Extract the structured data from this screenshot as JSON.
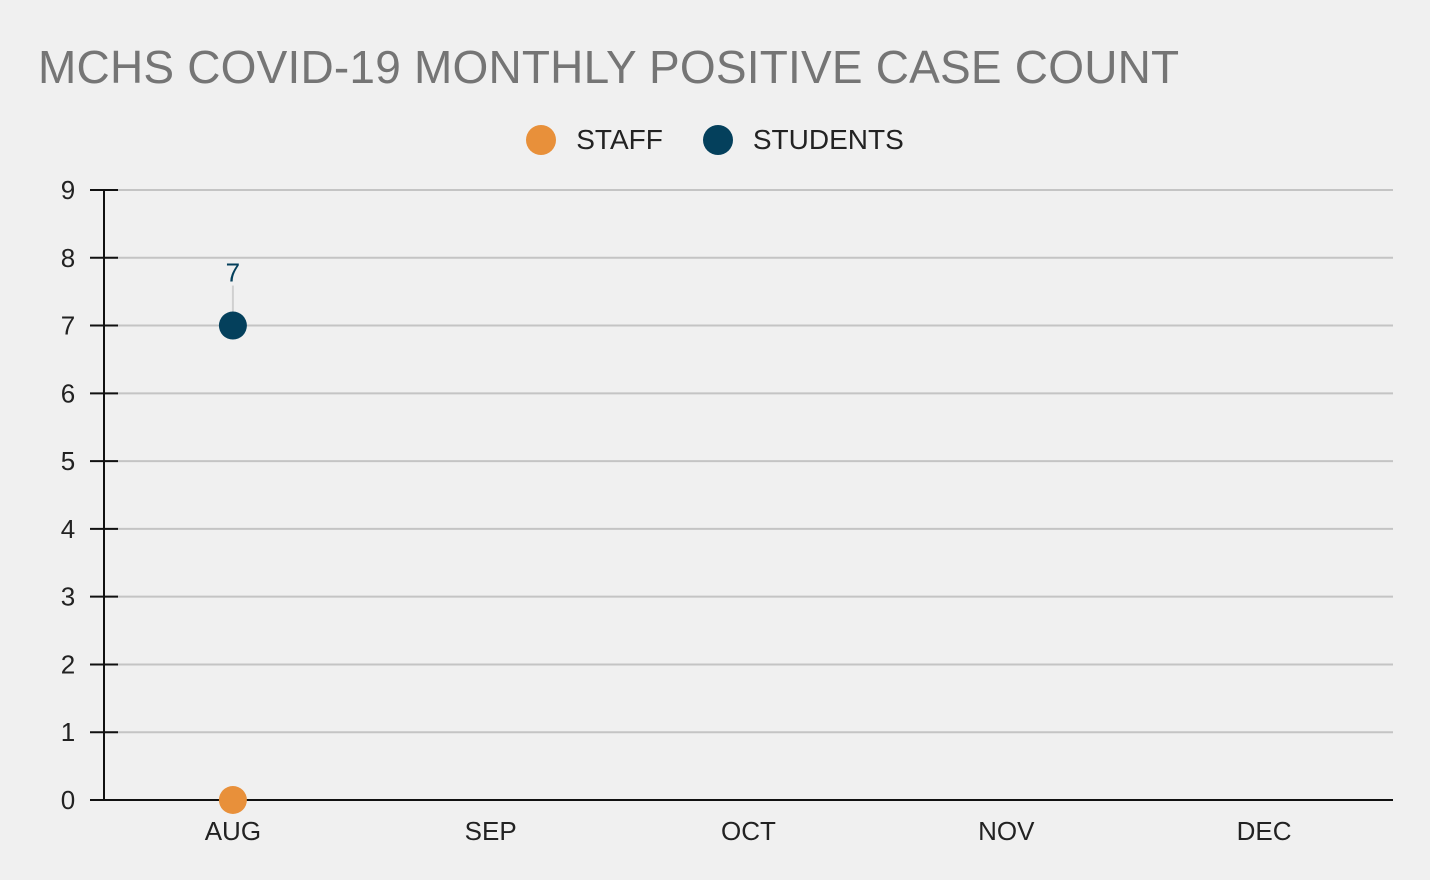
{
  "chart_data": {
    "type": "scatter",
    "title": "MCHS COVID-19 MONTHLY POSITIVE CASE COUNT",
    "xlabel": "",
    "ylabel": "",
    "categories": [
      "AUG",
      "SEP",
      "OCT",
      "NOV",
      "DEC"
    ],
    "yticks": [
      "0",
      "1",
      "2",
      "3",
      "4",
      "5",
      "6",
      "7",
      "8",
      "9"
    ],
    "ylim": [
      0,
      9
    ],
    "grid": true,
    "legend_position": "top-center",
    "series": [
      {
        "name": "STAFF",
        "color": "#e8903a",
        "values": [
          0,
          null,
          null,
          null,
          null
        ],
        "data_labels": [
          null,
          null,
          null,
          null,
          null
        ]
      },
      {
        "name": "STUDENTS",
        "color": "#04405c",
        "values": [
          7,
          null,
          null,
          null,
          null
        ],
        "data_labels": [
          "7",
          null,
          null,
          null,
          null
        ]
      }
    ]
  }
}
